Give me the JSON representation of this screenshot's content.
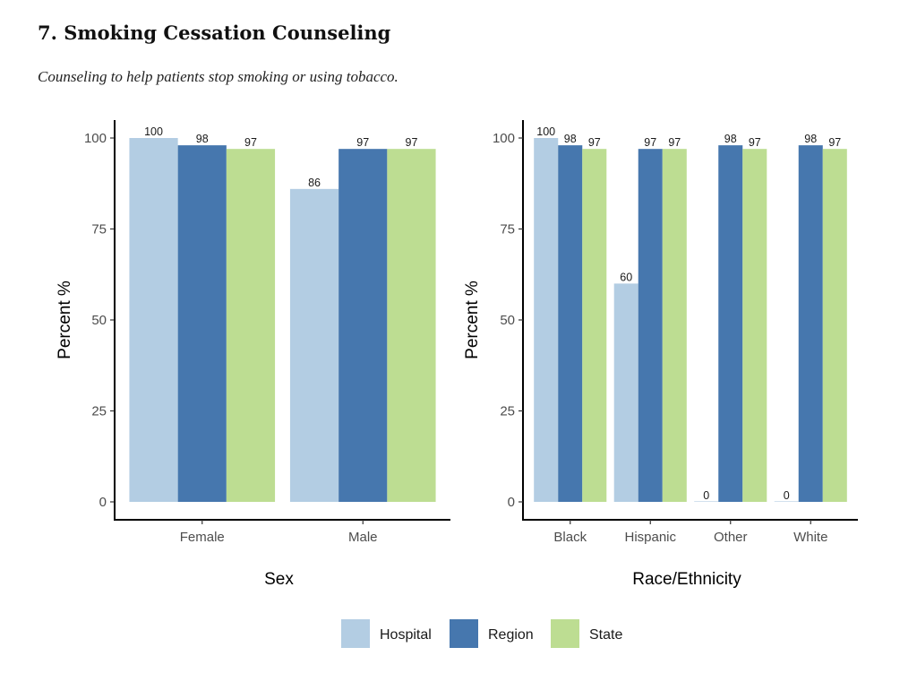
{
  "page": {
    "title": "7. Smoking Cessation Counseling",
    "subtitle": "Counseling to help patients stop smoking or using tobacco."
  },
  "colors": {
    "Hospital": "#b3cde3",
    "Region": "#4677ae",
    "State": "#bddd92"
  },
  "chart_data": [
    {
      "type": "bar",
      "title": "",
      "xlabel": "Sex",
      "ylabel": "Percent %",
      "ylim": [
        0,
        100
      ],
      "yticks": [
        0,
        25,
        50,
        75,
        100
      ],
      "categories": [
        "Female",
        "Male"
      ],
      "series": [
        {
          "name": "Hospital",
          "values": [
            100,
            86
          ]
        },
        {
          "name": "Region",
          "values": [
            98,
            97
          ]
        },
        {
          "name": "State",
          "values": [
            97,
            97
          ]
        }
      ],
      "data_labels": true,
      "grid": false
    },
    {
      "type": "bar",
      "title": "",
      "xlabel": "Race/Ethnicity",
      "ylabel": "Percent %",
      "ylim": [
        0,
        100
      ],
      "yticks": [
        0,
        25,
        50,
        75,
        100
      ],
      "categories": [
        "Black",
        "Hispanic",
        "Other",
        "White"
      ],
      "series": [
        {
          "name": "Hospital",
          "values": [
            100,
            60,
            0,
            0
          ]
        },
        {
          "name": "Region",
          "values": [
            98,
            97,
            98,
            98
          ]
        },
        {
          "name": "State",
          "values": [
            97,
            97,
            97,
            97
          ]
        }
      ],
      "data_labels": true,
      "grid": false
    }
  ],
  "legend": {
    "position": "bottom",
    "items": [
      "Hospital",
      "Region",
      "State"
    ]
  }
}
